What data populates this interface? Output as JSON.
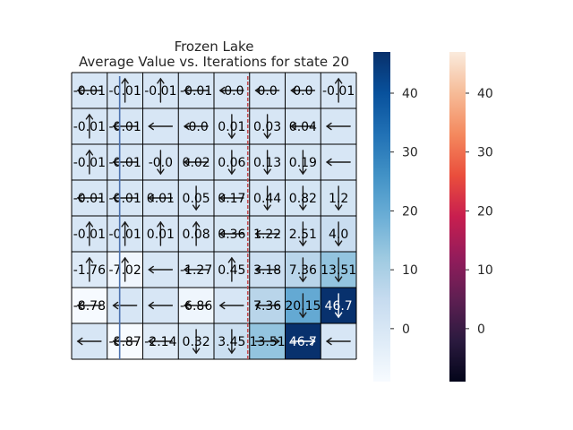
{
  "chart_data": {
    "type": "heatmap",
    "title": "Frozen Lake",
    "subtitle": "Average Value vs. Iterations for state 20",
    "rows": 8,
    "cols": 8,
    "values": [
      [
        "-0.01",
        "-0.01",
        "-0.01",
        "-0.01",
        "-0.0",
        "0.0",
        "0.0",
        "-0.01"
      ],
      [
        "-0.01",
        "-0.01",
        "",
        "-0.0",
        "0.01",
        "0.03",
        "0.04",
        ""
      ],
      [
        "-0.01",
        "-0.01",
        "-0.0",
        "0.02",
        "0.06",
        "0.13",
        "0.19",
        ""
      ],
      [
        "-0.01",
        "-0.01",
        "0.01",
        "0.05",
        "0.17",
        "0.44",
        "0.82",
        "1.2"
      ],
      [
        "-0.01",
        "-0.01",
        "0.01",
        "0.08",
        "0.36",
        "1.22",
        "2.51",
        "4.0"
      ],
      [
        "-1.76",
        "-7.02",
        "",
        "-1.27",
        "0.45",
        "3.18",
        "7.36",
        "13.51"
      ],
      [
        "-8.78",
        "",
        "",
        "-6.86",
        "",
        "7.36",
        "20.15",
        "46.7"
      ],
      [
        "",
        "-8.87",
        "-2.14",
        "0.32",
        "3.45",
        "13.51",
        "46.7",
        ""
      ]
    ],
    "cell_values_numeric": [
      [
        -0.01,
        -0.01,
        -0.01,
        -0.01,
        0.0,
        0.0,
        0.0,
        -0.01
      ],
      [
        -0.01,
        -0.01,
        0.0,
        0.0,
        0.01,
        0.03,
        0.04,
        0.0
      ],
      [
        -0.01,
        -0.01,
        0.0,
        0.02,
        0.06,
        0.13,
        0.19,
        0.0
      ],
      [
        -0.01,
        -0.01,
        0.01,
        0.05,
        0.17,
        0.44,
        0.82,
        1.2
      ],
      [
        -0.01,
        -0.01,
        0.01,
        0.08,
        0.36,
        1.22,
        2.51,
        4.0
      ],
      [
        -1.76,
        -7.02,
        0.0,
        -1.27,
        0.45,
        3.18,
        7.36,
        13.51
      ],
      [
        -8.78,
        0.0,
        0.0,
        -6.86,
        0.0,
        7.36,
        20.15,
        46.7
      ],
      [
        0.0,
        -8.87,
        -2.14,
        0.32,
        3.45,
        13.51,
        46.7,
        0.0
      ]
    ],
    "arrows": [
      [
        "left",
        "up",
        "up",
        "left",
        "left",
        "left",
        "left",
        "up"
      ],
      [
        "up",
        "left",
        "left",
        "left",
        "down",
        "down",
        "left",
        "left"
      ],
      [
        "up",
        "left",
        "down",
        "left",
        "down",
        "down",
        "down",
        "left"
      ],
      [
        "left",
        "left",
        "left",
        "down",
        "left",
        "down",
        "down",
        "down"
      ],
      [
        "up",
        "up",
        "up",
        "up",
        "left",
        "left",
        "down",
        "down"
      ],
      [
        "up",
        "up",
        "left",
        "left",
        "up",
        "left",
        "down",
        "down"
      ],
      [
        "left",
        "left",
        "left",
        "left",
        "left",
        "left",
        "down",
        "down"
      ],
      [
        "left",
        "left",
        "left",
        "down",
        "down",
        "right",
        "right",
        "left"
      ]
    ],
    "vlines": [
      {
        "col_position": 1.35,
        "color": "#4c72b0"
      },
      {
        "col_position": 4.95,
        "color": "#c44e52",
        "style": "dashed"
      }
    ],
    "colorbars": [
      {
        "cmap": "Blues",
        "min": -9,
        "max": 47,
        "ticks": [
          "0",
          "10",
          "20",
          "30",
          "40"
        ],
        "tick_values": [
          0,
          10,
          20,
          30,
          40
        ],
        "stops": [
          "#f7fbff",
          "#deebf7",
          "#c6dbef",
          "#9ecae1",
          "#6baed6",
          "#4292c6",
          "#2171b5",
          "#08519c",
          "#08306b"
        ]
      },
      {
        "cmap": "rocket",
        "min": -9,
        "max": 47,
        "ticks": [
          "0",
          "10",
          "20",
          "30",
          "40"
        ],
        "tick_values": [
          0,
          10,
          20,
          30,
          40
        ],
        "stops": [
          "#03051a",
          "#2b1a3f",
          "#5e1f52",
          "#931c5b",
          "#c81e4f",
          "#ea4e3c",
          "#f4895e",
          "#f6bb97",
          "#faebdd"
        ]
      }
    ],
    "grid_line_color": "#000000"
  }
}
